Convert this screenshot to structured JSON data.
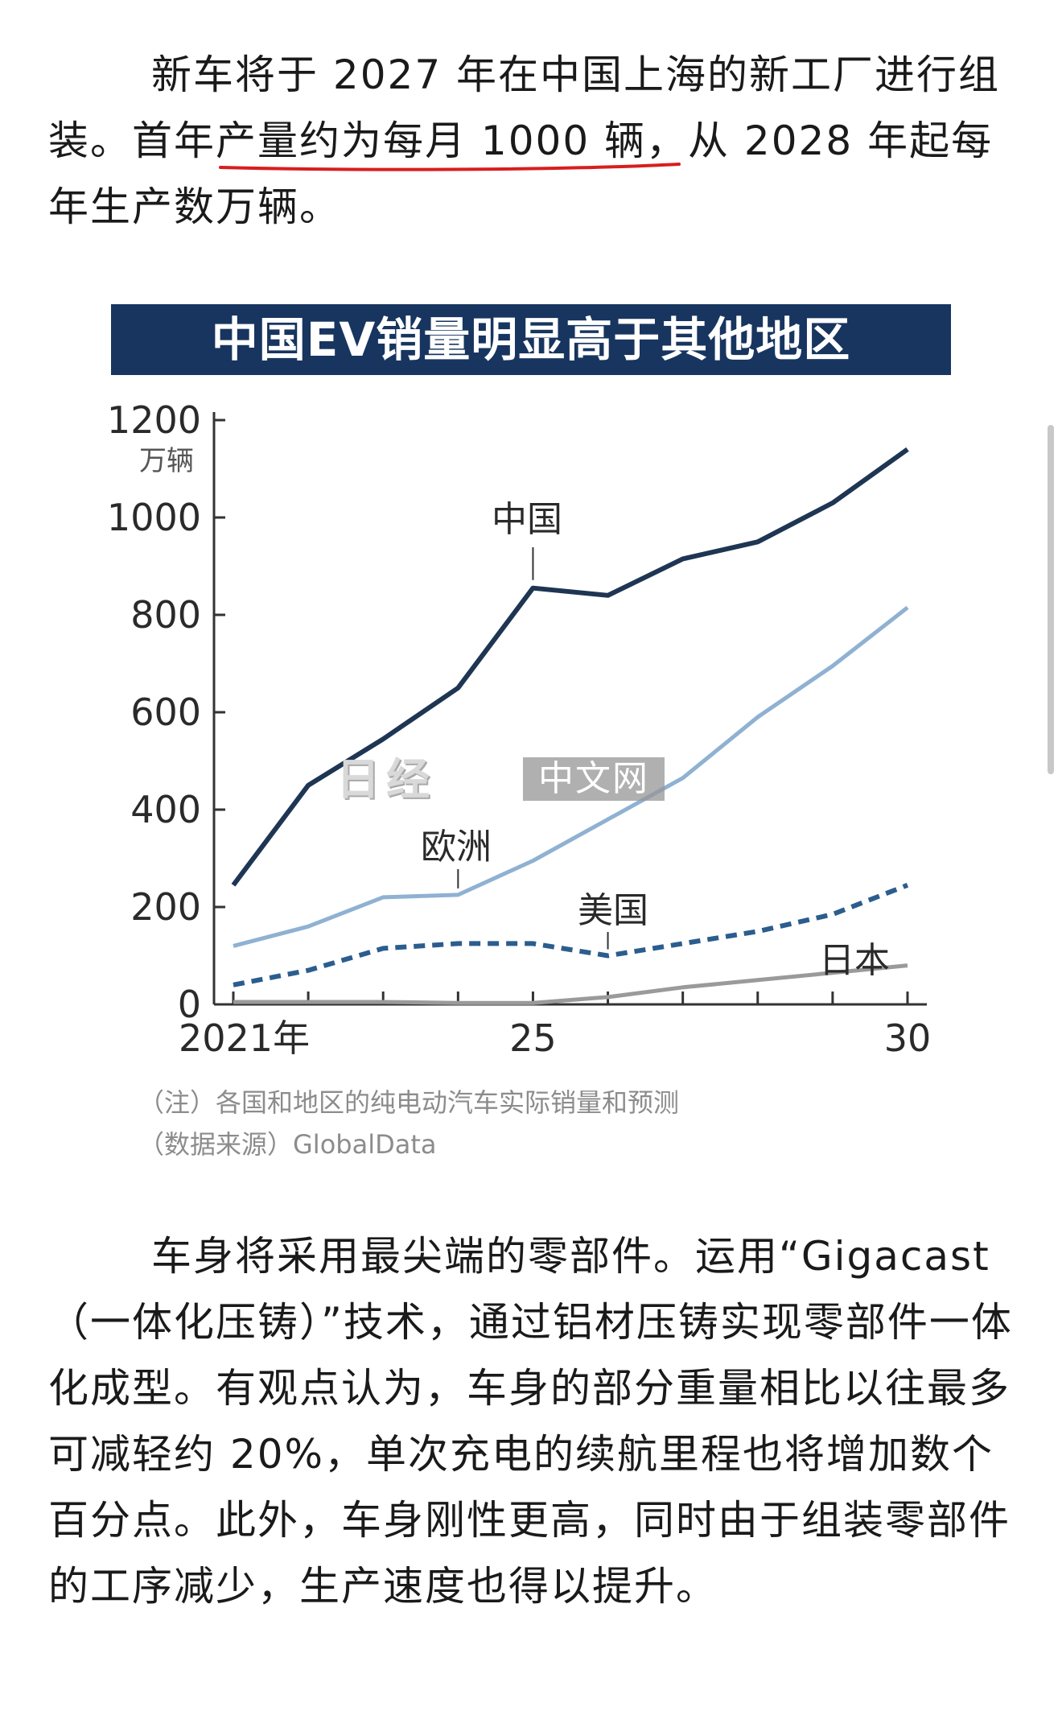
{
  "article": {
    "paragraph_1": "新车将于 2027 年在中国上海的新工厂进行组装。首年产量约为每月 1000 辆，从 2028 年起每年生产数万辆。",
    "paragraph_2": "车身将采用最尖端的零部件。运用“Gigacast（一体化压铸）”技术，通过铝材压铸实现零部件一体化成型。有观点认为，车身的部分重量相比以往最多可减轻约 20%，单次充电的续航里程也将增加数个百分点。此外，车身刚性更高，同时由于组装零部件的工序减少，生产速度也得以提升。"
  },
  "figure": {
    "note": "（注）各国和地区的纯电动汽车实际销量和预测",
    "source": "（数据来源）GlobalData",
    "watermark_logo": "日经",
    "watermark_badge": "中文网"
  },
  "colors": {
    "title_bar": "#17355f",
    "china": "#1e3553",
    "europe": "#8fb1d2",
    "usa": "#2b5d8e",
    "japan": "#9a9a9a",
    "underline": "#d81e1e"
  },
  "chart_data": {
    "type": "line",
    "title": "中国EV销量明显高于其他地区",
    "ylabel": "万辆",
    "x": [
      2021,
      2022,
      2023,
      2024,
      2025,
      2026,
      2027,
      2028,
      2029,
      2030
    ],
    "x_tick_labels": [
      {
        "x": 2021,
        "label": "2021年"
      },
      {
        "x": 2025,
        "label": "25"
      },
      {
        "x": 2030,
        "label": "30"
      }
    ],
    "y_ticks": [
      0,
      200,
      400,
      600,
      800,
      1000,
      1200
    ],
    "ylim": [
      0,
      1200
    ],
    "grid": false,
    "legend": "inline labels",
    "series": [
      {
        "name": "中国",
        "style": "solid",
        "values": [
          245,
          450,
          545,
          650,
          855,
          840,
          915,
          950,
          1030,
          1140
        ]
      },
      {
        "name": "欧洲",
        "style": "solid",
        "values": [
          120,
          160,
          220,
          225,
          295,
          380,
          465,
          590,
          695,
          815
        ]
      },
      {
        "name": "美国",
        "style": "dashed",
        "values": [
          40,
          70,
          115,
          125,
          125,
          100,
          125,
          150,
          185,
          245
        ]
      },
      {
        "name": "日本",
        "style": "solid",
        "values": [
          5,
          5,
          5,
          3,
          3,
          15,
          35,
          50,
          65,
          80
        ]
      }
    ]
  }
}
